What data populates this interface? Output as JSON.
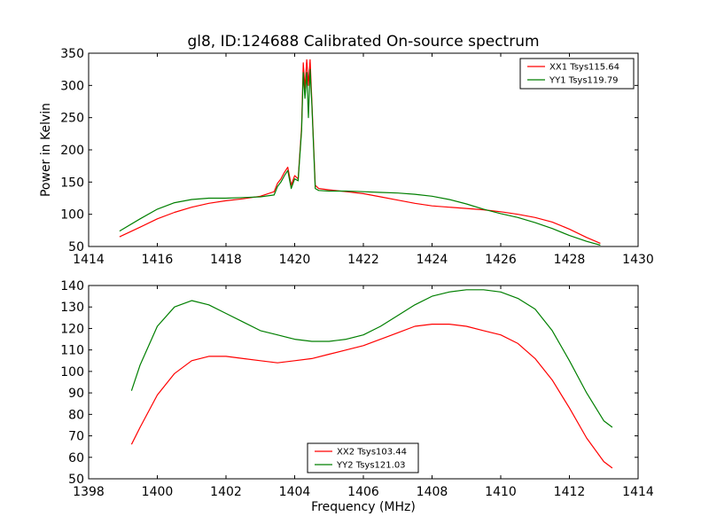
{
  "chart_data": [
    {
      "type": "line",
      "title": "gl8, ID:124688 Calibrated On-source spectrum",
      "xlabel": "",
      "ylabel": "Power in Kelvin",
      "xlim": [
        1414,
        1430
      ],
      "ylim": [
        50,
        350
      ],
      "xticks": [
        "1414",
        "1416",
        "1418",
        "1420",
        "1422",
        "1424",
        "1426",
        "1428",
        "1430"
      ],
      "yticks": [
        "50",
        "100",
        "150",
        "200",
        "250",
        "300",
        "350"
      ],
      "grid": false,
      "legend_position": "top-right",
      "series": [
        {
          "name": "XX1 Tsys115.64",
          "color": "#ff0000",
          "x": [
            1414.9,
            1415.5,
            1416.0,
            1416.5,
            1417.0,
            1417.5,
            1418.0,
            1418.5,
            1419.0,
            1419.4,
            1419.5,
            1419.6,
            1419.7,
            1419.8,
            1419.9,
            1420.0,
            1420.1,
            1420.2,
            1420.25,
            1420.3,
            1420.35,
            1420.4,
            1420.45,
            1420.5,
            1420.6,
            1420.7,
            1421.0,
            1421.5,
            1422.0,
            1422.5,
            1423.0,
            1423.5,
            1424.0,
            1424.5,
            1425.0,
            1425.5,
            1426.0,
            1426.5,
            1427.0,
            1427.5,
            1428.0,
            1428.5,
            1428.9
          ],
          "y": [
            65,
            80,
            93,
            103,
            111,
            117,
            121,
            124,
            128,
            135,
            148,
            155,
            165,
            173,
            145,
            160,
            155,
            235,
            335,
            295,
            340,
            300,
            340,
            275,
            145,
            140,
            138,
            135,
            132,
            127,
            122,
            117,
            113,
            111,
            109,
            107,
            104,
            100,
            95,
            88,
            77,
            64,
            55
          ]
        },
        {
          "name": "YY1 Tsys119.79",
          "color": "#007f00",
          "x": [
            1414.9,
            1415.5,
            1416.0,
            1416.5,
            1417.0,
            1417.5,
            1418.0,
            1418.5,
            1419.0,
            1419.4,
            1419.5,
            1419.6,
            1419.7,
            1419.8,
            1419.9,
            1420.0,
            1420.1,
            1420.2,
            1420.25,
            1420.3,
            1420.35,
            1420.4,
            1420.45,
            1420.5,
            1420.6,
            1420.7,
            1421.0,
            1421.5,
            1422.0,
            1422.5,
            1423.0,
            1423.5,
            1424.0,
            1424.5,
            1425.0,
            1425.5,
            1426.0,
            1426.5,
            1427.0,
            1427.5,
            1428.0,
            1428.5,
            1428.9
          ],
          "y": [
            74,
            93,
            108,
            118,
            123,
            125,
            125,
            126,
            127,
            130,
            143,
            150,
            160,
            168,
            140,
            155,
            152,
            230,
            320,
            280,
            320,
            250,
            325,
            270,
            140,
            137,
            136,
            136,
            135,
            134,
            133,
            131,
            128,
            123,
            116,
            108,
            101,
            95,
            87,
            78,
            67,
            58,
            52
          ]
        }
      ]
    },
    {
      "type": "line",
      "title": "",
      "xlabel": "Frequency (MHz)",
      "ylabel": "",
      "xlim": [
        1398,
        1414
      ],
      "ylim": [
        50,
        140
      ],
      "xticks": [
        "1398",
        "1400",
        "1402",
        "1404",
        "1406",
        "1408",
        "1410",
        "1412",
        "1414"
      ],
      "yticks": [
        "50",
        "60",
        "70",
        "80",
        "90",
        "100",
        "110",
        "120",
        "130",
        "140"
      ],
      "grid": false,
      "legend_position": "bottom-center",
      "series": [
        {
          "name": "XX2 Tsys103.44",
          "color": "#ff0000",
          "x": [
            1399.25,
            1399.5,
            1400.0,
            1400.5,
            1401.0,
            1401.5,
            1402.0,
            1402.5,
            1403.0,
            1403.5,
            1404.0,
            1404.5,
            1405.0,
            1405.5,
            1406.0,
            1406.5,
            1407.0,
            1407.5,
            1408.0,
            1408.5,
            1409.0,
            1409.5,
            1410.0,
            1410.5,
            1411.0,
            1411.5,
            1412.0,
            1412.5,
            1413.0,
            1413.25
          ],
          "y": [
            66,
            74,
            89,
            99,
            105,
            107,
            107,
            106,
            105,
            104,
            105,
            106,
            108,
            110,
            112,
            115,
            118,
            121,
            122,
            122,
            121,
            119,
            117,
            113,
            106,
            96,
            83,
            69,
            58,
            55
          ]
        },
        {
          "name": "YY2 Tsys121.03",
          "color": "#007f00",
          "x": [
            1399.25,
            1399.5,
            1400.0,
            1400.5,
            1401.0,
            1401.5,
            1402.0,
            1402.5,
            1403.0,
            1403.5,
            1404.0,
            1404.5,
            1405.0,
            1405.5,
            1406.0,
            1406.5,
            1407.0,
            1407.5,
            1408.0,
            1408.5,
            1409.0,
            1409.5,
            1410.0,
            1410.5,
            1411.0,
            1411.5,
            1412.0,
            1412.5,
            1413.0,
            1413.25
          ],
          "y": [
            91,
            103,
            121,
            130,
            133,
            131,
            127,
            123,
            119,
            117,
            115,
            114,
            114,
            115,
            117,
            121,
            126,
            131,
            135,
            137,
            138,
            138,
            137,
            134,
            129,
            119,
            105,
            90,
            77,
            74
          ]
        }
      ]
    }
  ]
}
